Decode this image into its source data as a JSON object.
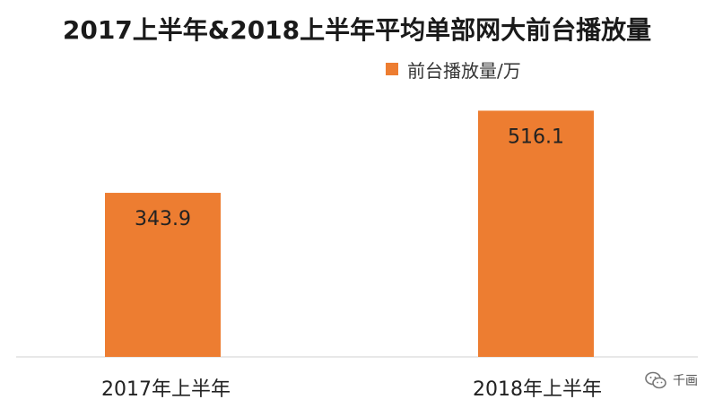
{
  "chart_data": {
    "type": "bar",
    "title": "2017上半年&2018上半年平均单部网大前台播放量",
    "categories": [
      "2017年上半年",
      "2018年上半年"
    ],
    "series": [
      {
        "name": "前台播放量/万",
        "values": [
          343.9,
          516.1
        ],
        "color": "#ED7D31"
      }
    ],
    "data_labels": [
      "343.9",
      "516.1"
    ],
    "ylim": [
      0,
      600
    ],
    "grid": false,
    "legend_position": "top-right"
  },
  "watermark": {
    "text": "千画",
    "icon": "wechat-icon"
  }
}
